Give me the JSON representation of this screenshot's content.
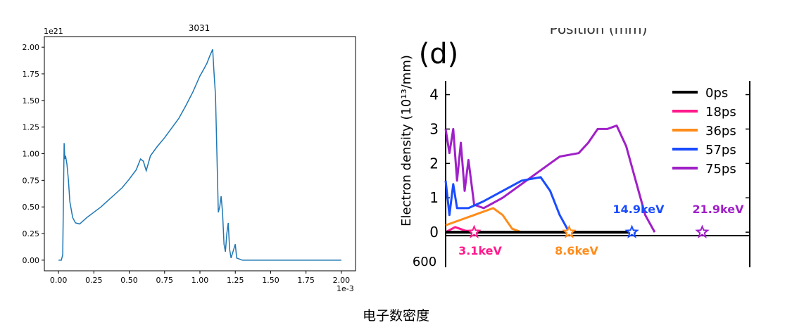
{
  "caption": "电子数密度",
  "chart_data": [
    {
      "type": "line",
      "title": "3031",
      "xlabel": "",
      "ylabel": "",
      "x_offset_text": "1e-3",
      "y_offset_text": "1e21",
      "xlim": [
        -0.1,
        2.1
      ],
      "ylim": [
        -0.1,
        2.1
      ],
      "xticks": [
        0.0,
        0.25,
        0.5,
        0.75,
        1.0,
        1.25,
        1.5,
        1.75,
        2.0
      ],
      "xtick_labels": [
        "0.00",
        "0.25",
        "0.50",
        "0.75",
        "1.00",
        "1.25",
        "1.50",
        "1.75",
        "2.00"
      ],
      "yticks": [
        0.0,
        0.25,
        0.5,
        0.75,
        1.0,
        1.25,
        1.5,
        1.75,
        2.0
      ],
      "ytick_labels": [
        "0.00",
        "0.25",
        "0.50",
        "0.75",
        "1.00",
        "1.25",
        "1.50",
        "1.75",
        "2.00"
      ],
      "grid": false,
      "series": [
        {
          "color": "#1f77b4",
          "points": [
            [
              0.0,
              0.0
            ],
            [
              0.02,
              0.0
            ],
            [
              0.03,
              0.05
            ],
            [
              0.04,
              1.1
            ],
            [
              0.045,
              0.95
            ],
            [
              0.05,
              0.98
            ],
            [
              0.06,
              0.9
            ],
            [
              0.07,
              0.75
            ],
            [
              0.08,
              0.55
            ],
            [
              0.1,
              0.4
            ],
            [
              0.12,
              0.35
            ],
            [
              0.15,
              0.34
            ],
            [
              0.2,
              0.4
            ],
            [
              0.25,
              0.45
            ],
            [
              0.3,
              0.5
            ],
            [
              0.35,
              0.56
            ],
            [
              0.4,
              0.62
            ],
            [
              0.45,
              0.68
            ],
            [
              0.5,
              0.76
            ],
            [
              0.55,
              0.85
            ],
            [
              0.58,
              0.95
            ],
            [
              0.6,
              0.93
            ],
            [
              0.62,
              0.84
            ],
            [
              0.65,
              0.98
            ],
            [
              0.7,
              1.07
            ],
            [
              0.75,
              1.15
            ],
            [
              0.8,
              1.24
            ],
            [
              0.85,
              1.33
            ],
            [
              0.9,
              1.45
            ],
            [
              0.95,
              1.58
            ],
            [
              1.0,
              1.73
            ],
            [
              1.03,
              1.8
            ],
            [
              1.05,
              1.85
            ],
            [
              1.07,
              1.92
            ],
            [
              1.09,
              1.98
            ],
            [
              1.1,
              1.75
            ],
            [
              1.11,
              1.55
            ],
            [
              1.12,
              1.0
            ],
            [
              1.13,
              0.45
            ],
            [
              1.14,
              0.5
            ],
            [
              1.15,
              0.6
            ],
            [
              1.16,
              0.45
            ],
            [
              1.17,
              0.15
            ],
            [
              1.18,
              0.08
            ],
            [
              1.19,
              0.25
            ],
            [
              1.2,
              0.35
            ],
            [
              1.21,
              0.1
            ],
            [
              1.22,
              0.02
            ],
            [
              1.25,
              0.15
            ],
            [
              1.26,
              0.02
            ],
            [
              1.3,
              0.0
            ],
            [
              1.5,
              0.0
            ],
            [
              2.0,
              0.0
            ]
          ]
        }
      ]
    },
    {
      "type": "line",
      "panel_label": "(d)",
      "top_partial_label": "Position (mm)",
      "ylabel": "Electron density (10¹³/mm)",
      "ylabel_partial_below": "600",
      "ylim": [
        -0.1,
        4.4
      ],
      "yticks": [
        0,
        1,
        2,
        3,
        4
      ],
      "ytick_labels": [
        "0",
        "1",
        "2",
        "3",
        "4"
      ],
      "legend_position": "top-right",
      "series": [
        {
          "name": "0ps",
          "color": "#000000",
          "values": [
            [
              0,
              0
            ],
            [
              10,
              0
            ]
          ]
        },
        {
          "name": "18ps",
          "color": "#ff1a8c",
          "values": [
            [
              0,
              0
            ],
            [
              0.5,
              0.15
            ],
            [
              1.0,
              0.05
            ],
            [
              1.5,
              0.0
            ]
          ]
        },
        {
          "name": "36ps",
          "color": "#ff8c1a",
          "values": [
            [
              0,
              0.2
            ],
            [
              0.5,
              0.3
            ],
            [
              1.5,
              0.5
            ],
            [
              2.5,
              0.7
            ],
            [
              3.0,
              0.5
            ],
            [
              3.5,
              0.1
            ],
            [
              4.0,
              0.0
            ]
          ]
        },
        {
          "name": "57ps",
          "color": "#1a4cff",
          "values": [
            [
              0,
              1.5
            ],
            [
              0.2,
              0.5
            ],
            [
              0.4,
              1.4
            ],
            [
              0.6,
              0.7
            ],
            [
              1.2,
              0.7
            ],
            [
              2.0,
              0.9
            ],
            [
              3.0,
              1.2
            ],
            [
              4.0,
              1.5
            ],
            [
              5.0,
              1.6
            ],
            [
              5.5,
              1.2
            ],
            [
              6.0,
              0.5
            ],
            [
              6.5,
              0.0
            ]
          ]
        },
        {
          "name": "75ps",
          "color": "#a020c8",
          "values": [
            [
              0,
              3.0
            ],
            [
              0.2,
              2.3
            ],
            [
              0.4,
              3.0
            ],
            [
              0.6,
              1.5
            ],
            [
              0.8,
              2.6
            ],
            [
              1.0,
              1.2
            ],
            [
              1.2,
              2.1
            ],
            [
              1.5,
              0.8
            ],
            [
              2.0,
              0.7
            ],
            [
              3.0,
              1.0
            ],
            [
              4.5,
              1.6
            ],
            [
              5.5,
              2.0
            ],
            [
              6.0,
              2.2
            ],
            [
              7.0,
              2.3
            ],
            [
              7.5,
              2.6
            ],
            [
              8.0,
              3.0
            ],
            [
              8.5,
              3.0
            ],
            [
              9.0,
              3.1
            ],
            [
              9.5,
              2.5
            ],
            [
              10.0,
              1.5
            ],
            [
              10.5,
              0.5
            ],
            [
              11.0,
              0.0
            ]
          ]
        }
      ],
      "annotations": [
        {
          "text": "14.9keV",
          "color": "#1a4cff"
        },
        {
          "text": "21.9keV",
          "color": "#a020c8"
        },
        {
          "text": "3.1keV",
          "color": "#ff1a8c"
        },
        {
          "text": "8.6keV",
          "color": "#ff8c1a"
        }
      ],
      "markers": [
        {
          "shape": "star",
          "color": "#ff1a8c",
          "x": 1.5,
          "y": 0
        },
        {
          "shape": "star",
          "color": "#ff8c1a",
          "x": 6.5,
          "y": 0
        },
        {
          "shape": "star",
          "color": "#1a4cff",
          "x": 9.8,
          "y": 0
        },
        {
          "shape": "star",
          "color": "#a020c8",
          "x": 13.5,
          "y": 0
        }
      ]
    }
  ]
}
